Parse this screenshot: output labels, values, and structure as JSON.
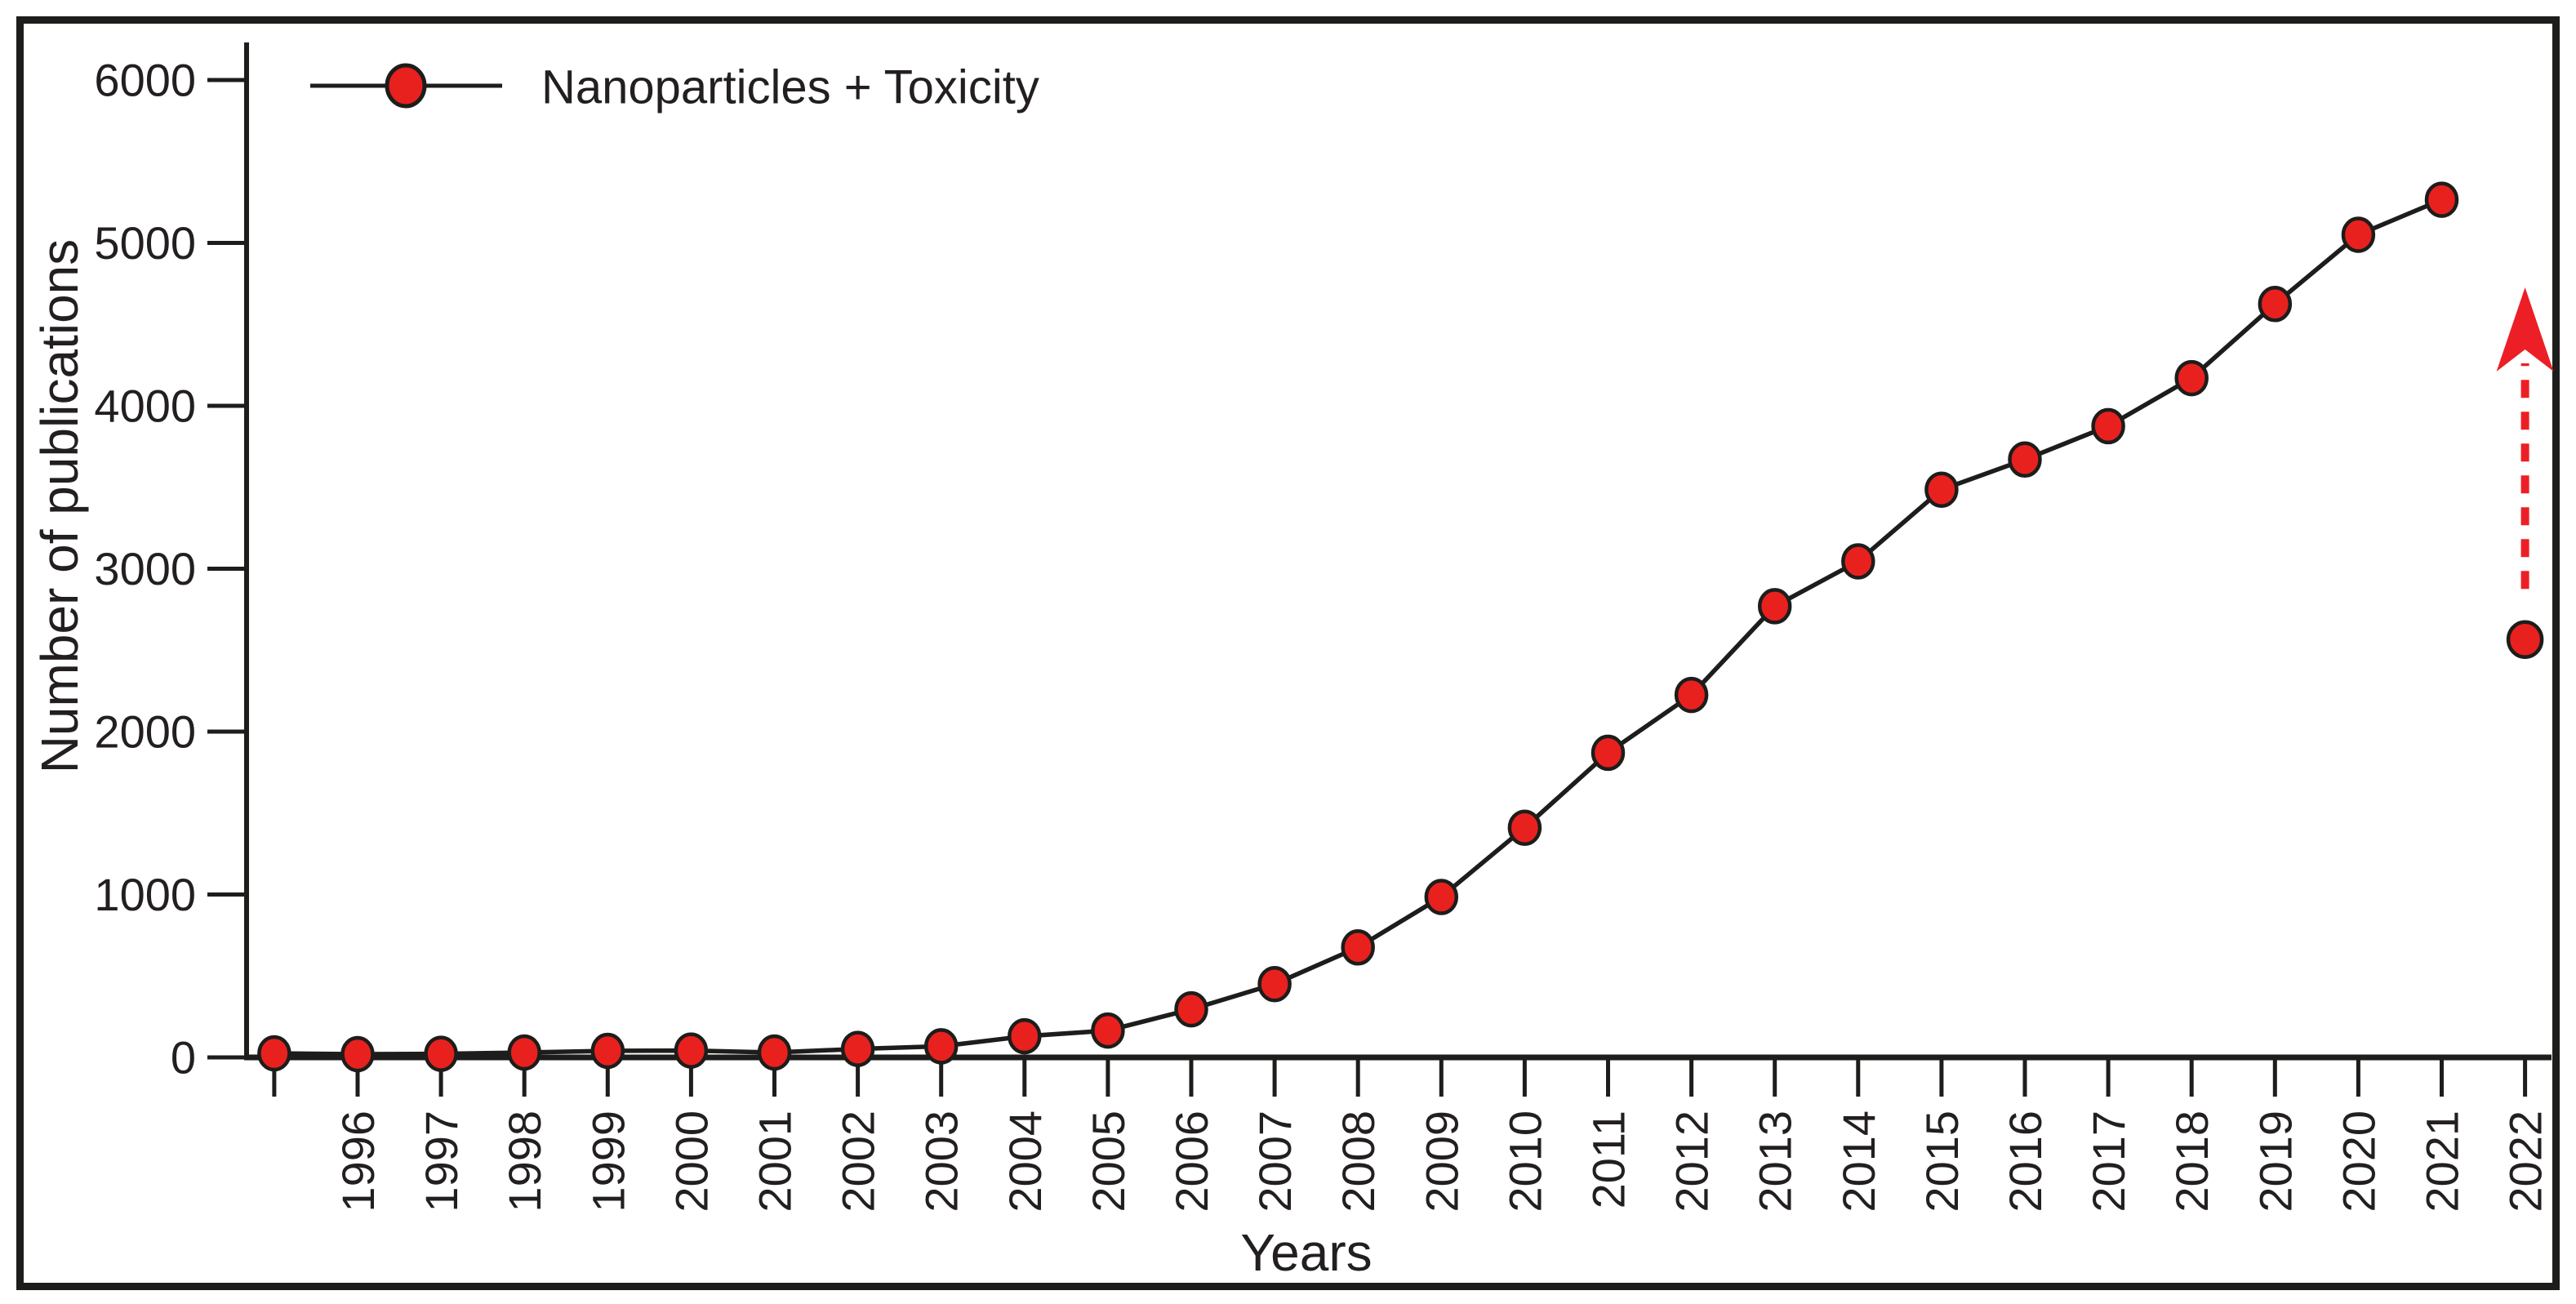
{
  "figure": {
    "legend_label": "Nanoparticles + Toxicity",
    "y_axis_title": "Number of publications",
    "x_axis_title": "Years"
  },
  "colors": {
    "marker_red": "#e8211f",
    "arrow_red": "#ec1f26",
    "line_black": "#1d1d1b",
    "text_dark": "#231f20"
  },
  "chart_data": {
    "type": "line",
    "title": "",
    "xlabel": "Years",
    "ylabel": "Number of publications",
    "ylim": [
      0,
      6000
    ],
    "grid": false,
    "legend_position": "top-left",
    "y_ticks": [
      0,
      1000,
      2000,
      3000,
      4000,
      5000,
      6000
    ],
    "x_tick_years": [
      1995,
      1996,
      1997,
      1998,
      1999,
      2000,
      2001,
      2002,
      2003,
      2004,
      2005,
      2006,
      2007,
      2008,
      2009,
      2010,
      2011,
      2012,
      2013,
      2014,
      2015,
      2016,
      2017,
      2018,
      2019,
      2020,
      2021,
      2022
    ],
    "x_tick_labels": [
      "",
      "1996",
      "1997",
      "1998",
      "1999",
      "2000",
      "2001",
      "2002",
      "2003",
      "2004",
      "2005",
      "2006",
      "2007",
      "2008",
      "2009",
      "2010",
      "2011",
      "2012",
      "2013",
      "2014",
      "2015",
      "2016",
      "2017",
      "2018",
      "2019",
      "2020",
      "2021",
      "2022"
    ],
    "series": [
      {
        "name": "Nanoparticles + Toxicity",
        "x": [
          1995,
          1996,
          1997,
          1998,
          1999,
          2000,
          2001,
          2002,
          2003,
          2004,
          2005,
          2006,
          2007,
          2008,
          2009,
          2010,
          2011,
          2012,
          2013,
          2014,
          2015,
          2016,
          2017,
          2018,
          2019,
          2020,
          2021
        ],
        "values": [
          25,
          20,
          22,
          30,
          40,
          42,
          30,
          52,
          68,
          130,
          165,
          295,
          450,
          675,
          985,
          1410,
          1870,
          2225,
          2770,
          3045,
          3485,
          3670,
          3875,
          4170,
          4625,
          5050,
          5265
        ]
      }
    ],
    "detached_point": {
      "year": 2022,
      "value": 2565,
      "annotation": "dashed-up-arrow"
    }
  }
}
